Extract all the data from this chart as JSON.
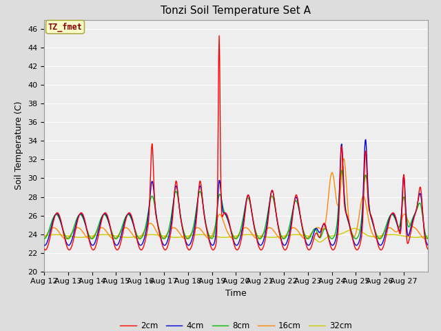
{
  "title": "Tonzi Soil Temperature Set A",
  "xlabel": "Time",
  "ylabel": "Soil Temperature (C)",
  "ylim": [
    20,
    47
  ],
  "yticks": [
    20,
    22,
    24,
    26,
    28,
    30,
    32,
    34,
    36,
    38,
    40,
    42,
    44,
    46
  ],
  "annotation_text": "TZ_fmet",
  "annotation_color": "#880000",
  "annotation_bg": "#ffffcc",
  "annotation_border": "#aaaa44",
  "legend_labels": [
    "2cm",
    "4cm",
    "8cm",
    "16cm",
    "32cm"
  ],
  "line_colors": [
    "#ff0000",
    "#0000dd",
    "#00bb00",
    "#ff8800",
    "#cccc00"
  ],
  "line_width": 1.0,
  "bg_color": "#dddddd",
  "plot_bg_color": "#eeeeee",
  "grid_color": "#ffffff",
  "x_labels": [
    "Aug 12",
    "Aug 13",
    "Aug 14",
    "Aug 15",
    "Aug 16",
    "Aug 17",
    "Aug 18",
    "Aug 19",
    "Aug 20",
    "Aug 21",
    "Aug 22",
    "Aug 23",
    "Aug 24",
    "Aug 25",
    "Aug 26",
    "Aug 27"
  ],
  "title_fontsize": 11,
  "axis_fontsize": 9,
  "tick_fontsize": 8
}
